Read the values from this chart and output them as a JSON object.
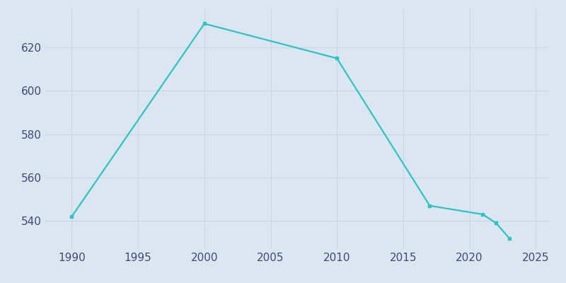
{
  "years": [
    1990,
    2000,
    2010,
    2017,
    2021,
    2022,
    2023
  ],
  "population": [
    542,
    631,
    615,
    547,
    543,
    539,
    532
  ],
  "line_color": "#2ec4c4",
  "background_color": "#dce6f1",
  "grid_color": "#c8d6e8",
  "tick_label_color": "#3a4a7a",
  "xlim": [
    1988,
    2026
  ],
  "ylim": [
    527,
    638
  ],
  "xticks": [
    1990,
    1995,
    2000,
    2005,
    2010,
    2015,
    2020,
    2025
  ],
  "yticks": [
    540,
    560,
    580,
    600,
    620
  ],
  "linewidth": 1.6,
  "marker_size": 3.5,
  "figsize": [
    8.0,
    4.0
  ],
  "dpi": 100,
  "label_fontsize": 11
}
